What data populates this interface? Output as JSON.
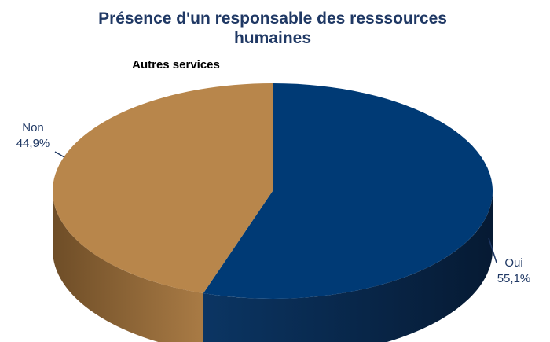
{
  "chart_data": {
    "type": "pie",
    "title_lines": [
      "Présence d'un responsable des resssources",
      "humaines"
    ],
    "subtitle": "Autres services",
    "slices": [
      {
        "label": "Oui",
        "value": 55.1,
        "display": "55,1%",
        "color": "#003a75",
        "side_color": "#001f40"
      },
      {
        "label": "Non",
        "value": 44.9,
        "display": "44,9%",
        "color": "#b8864b",
        "side_color": "#7e5a2f"
      }
    ],
    "style": "3d-pie",
    "legend": "none"
  }
}
